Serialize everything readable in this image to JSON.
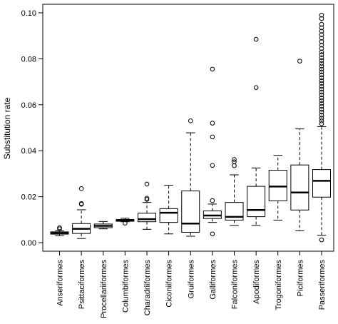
{
  "chart_data": {
    "type": "box",
    "ylabel": "Substitution rate",
    "xlabel": "",
    "ylim": [
      0.0,
      0.1
    ],
    "y_ticks": [
      "0.00",
      "0.02",
      "0.04",
      "0.06",
      "0.08",
      "0.10"
    ],
    "y_tick_values": [
      0.0,
      0.02,
      0.04,
      0.06,
      0.08,
      0.1
    ],
    "grid": false,
    "categories": [
      "Anseriformes",
      "Psittaciformes",
      "Procellariiformes",
      "Columbiformes",
      "Charadriiformes",
      "Ciconiiformes",
      "Gruiformes",
      "Galliformes",
      "Falconiformes",
      "Apodiformes",
      "Trogoniformes",
      "Piciformes",
      "Passeriformes"
    ],
    "boxes": [
      {
        "min": 0.003,
        "q1": 0.0037,
        "median": 0.0042,
        "q3": 0.0047,
        "max": 0.0052,
        "outliers": [
          0.006,
          0.0065
        ]
      },
      {
        "min": 0.0018,
        "q1": 0.004,
        "median": 0.006,
        "q3": 0.0083,
        "max": 0.0143,
        "outliers": [
          0.0167,
          0.017,
          0.0235
        ]
      },
      {
        "min": 0.006,
        "q1": 0.0065,
        "median": 0.0073,
        "q3": 0.0081,
        "max": 0.0092,
        "outliers": []
      },
      {
        "min": 0.0091,
        "q1": 0.0093,
        "median": 0.0096,
        "q3": 0.0101,
        "max": 0.0106,
        "outliers": [
          0.0085
        ]
      },
      {
        "min": 0.0058,
        "q1": 0.0091,
        "median": 0.0102,
        "q3": 0.0128,
        "max": 0.0175,
        "outliers": [
          0.0188,
          0.0193,
          0.0255
        ]
      },
      {
        "min": 0.0038,
        "q1": 0.0088,
        "median": 0.013,
        "q3": 0.0148,
        "max": 0.025,
        "outliers": []
      },
      {
        "min": 0.0028,
        "q1": 0.0045,
        "median": 0.0083,
        "q3": 0.0225,
        "max": 0.0478,
        "outliers": [
          0.053
        ]
      },
      {
        "min": 0.0088,
        "q1": 0.0105,
        "median": 0.0118,
        "q3": 0.0138,
        "max": 0.0168,
        "outliers": [
          0.0038,
          0.0183,
          0.0336,
          0.046,
          0.052,
          0.0755
        ]
      },
      {
        "min": 0.0075,
        "q1": 0.0098,
        "median": 0.0112,
        "q3": 0.0175,
        "max": 0.0295,
        "outliers": [
          0.0335,
          0.0352,
          0.0362
        ]
      },
      {
        "min": 0.0075,
        "q1": 0.0113,
        "median": 0.0142,
        "q3": 0.0245,
        "max": 0.0325,
        "outliers": [
          0.0675,
          0.0885
        ]
      },
      {
        "min": 0.0098,
        "q1": 0.0182,
        "median": 0.0244,
        "q3": 0.0315,
        "max": 0.038,
        "outliers": []
      },
      {
        "min": 0.0052,
        "q1": 0.0142,
        "median": 0.0218,
        "q3": 0.0338,
        "max": 0.0495,
        "outliers": [
          0.079
        ]
      },
      {
        "min": 0.0032,
        "q1": 0.0198,
        "median": 0.0269,
        "q3": 0.0318,
        "max": 0.0505,
        "outliers": [
          0.0012,
          0.0518,
          0.053,
          0.0542,
          0.0555,
          0.0568,
          0.058,
          0.0593,
          0.0605,
          0.0618,
          0.063,
          0.0643,
          0.0655,
          0.0668,
          0.068,
          0.0693,
          0.0705,
          0.0718,
          0.073,
          0.0743,
          0.0755,
          0.0768,
          0.078,
          0.0793,
          0.0805,
          0.0818,
          0.083,
          0.0845,
          0.086,
          0.0875,
          0.089,
          0.0905,
          0.092,
          0.0935,
          0.095,
          0.0975,
          0.099
        ]
      }
    ]
  }
}
